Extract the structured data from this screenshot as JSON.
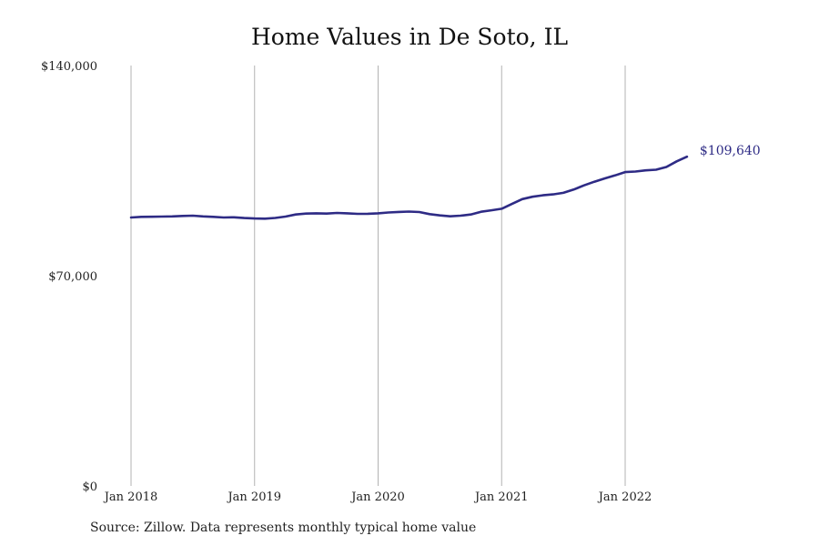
{
  "chart_data": {
    "type": "line",
    "title": "Home Values in De Soto, IL",
    "xlabel": "",
    "ylabel": "",
    "ylim": [
      0,
      140000
    ],
    "yticks": [
      {
        "value": 0,
        "label": "$0"
      },
      {
        "value": 70000,
        "label": "$70,000"
      },
      {
        "value": 140000,
        "label": "$140,000"
      }
    ],
    "xticks": [
      {
        "value": 0,
        "label": "Jan 2018"
      },
      {
        "value": 12,
        "label": "Jan 2019"
      },
      {
        "value": 24,
        "label": "Jan 2020"
      },
      {
        "value": 36,
        "label": "Jan 2021"
      },
      {
        "value": 48,
        "label": "Jan 2022"
      }
    ],
    "grid": "vertical",
    "line_color": "#2e2b85",
    "end_label": "$109,640",
    "series": [
      {
        "values": [
          89400,
          89600,
          89650,
          89700,
          89750,
          89900,
          90000,
          89750,
          89600,
          89400,
          89450,
          89200,
          89050,
          89000,
          89250,
          89700,
          90400,
          90700,
          90800,
          90700,
          90900,
          90800,
          90600,
          90650,
          90800,
          91050,
          91250,
          91350,
          91200,
          90500,
          90100,
          89800,
          90000,
          90400,
          91300,
          91800,
          92300,
          93900,
          95500,
          96300,
          96800,
          97100,
          97600,
          98700,
          100100,
          101300,
          102400,
          103400,
          104500,
          104700,
          105100,
          105300,
          106200,
          108100,
          109640
        ]
      }
    ]
  },
  "footer": {
    "source": "Source: Zillow. Data represents monthly typical home value"
  }
}
